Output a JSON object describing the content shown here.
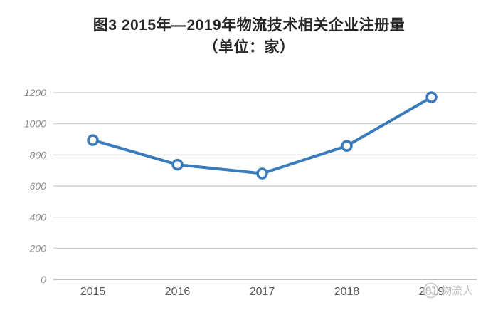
{
  "title": {
    "line1": "图3 2015年—2019年物流技术相关企业注册量",
    "line2": "（单位：家）"
  },
  "watermark": {
    "label": "物流人",
    "icon": "logo-circle-icon"
  },
  "colors": {
    "background": "#ffffff",
    "line": "#3a7cbb",
    "marker_fill": "#ffffff",
    "grid": "#c9c9c9",
    "axis_bottom": "#9a9a9a",
    "y_tick_label": "#8c8c8c",
    "x_tick_label": "#595959",
    "title": "#262626",
    "watermark": "#b3b3b3"
  },
  "chart_data": {
    "type": "line",
    "title": "图3 2015年—2019年物流技术相关企业注册量（单位：家）",
    "categories": [
      "2015",
      "2016",
      "2017",
      "2018",
      "2019"
    ],
    "series": [
      {
        "name": "物流技术相关企业注册量",
        "values": [
          895,
          737,
          680,
          858,
          1170
        ]
      }
    ],
    "xlabel": "",
    "ylabel": "",
    "ylim": [
      0,
      1200
    ],
    "yticks": [
      0,
      200,
      400,
      600,
      800,
      1000,
      1200
    ],
    "grid": true,
    "legend": false,
    "marker": "open-circle"
  }
}
